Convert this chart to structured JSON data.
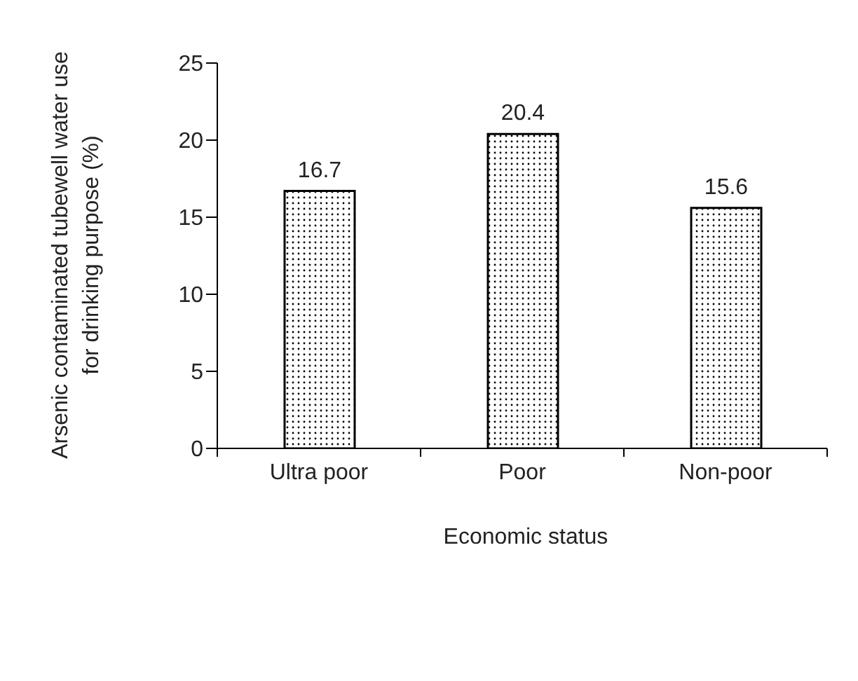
{
  "chart_data": {
    "type": "bar",
    "xlabel": "Economic status",
    "ylabel": "Arsenic contaminated tubewell water use\nfor drinking purpose (%)",
    "categories": [
      "Ultra poor",
      "Poor",
      "Non-poor"
    ],
    "values": [
      16.7,
      20.4,
      15.6
    ],
    "color": "#000000",
    "ylim": [
      0,
      25
    ],
    "yticks": [
      0,
      5,
      10,
      15,
      20,
      25
    ],
    "data_labels": true,
    "grid": false,
    "legend": false
  }
}
